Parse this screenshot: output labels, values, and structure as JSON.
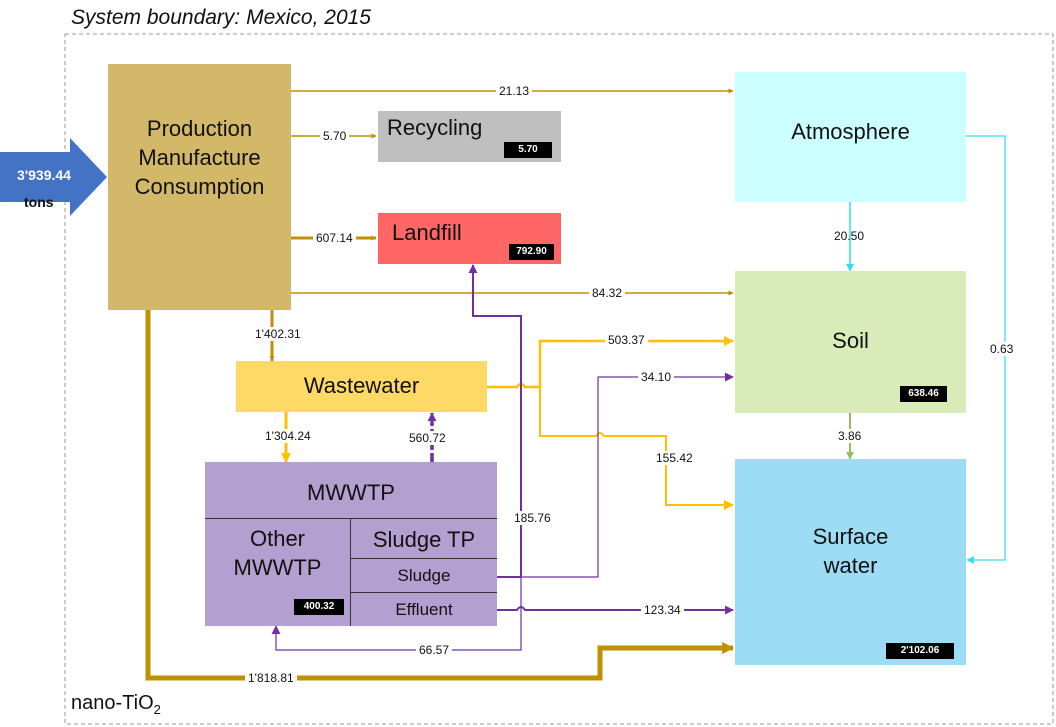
{
  "title": "System boundary: Mexico, 2015",
  "material": {
    "base": "nano-TiO",
    "sub": "2"
  },
  "input": {
    "value": "3'939.44",
    "unit": "tons"
  },
  "compartments": {
    "production": {
      "lines": [
        "Production",
        "Manufacture",
        "Consumption"
      ]
    },
    "recycling": {
      "label": "Recycling",
      "stock": "5.70"
    },
    "landfill": {
      "label": "Landfill",
      "stock": "792.90"
    },
    "wastewater": {
      "label": "Wastewater"
    },
    "mwwtp": {
      "label": "MWWTP",
      "other_lines": [
        "Other",
        "MWWTP"
      ],
      "other_stock": "400.32",
      "sludge_tp": "Sludge TP",
      "sludge": "Sludge",
      "effluent": "Effluent"
    },
    "atmosphere": {
      "label": "Atmosphere"
    },
    "soil": {
      "label": "Soil",
      "stock": "638.46"
    },
    "surface_water": {
      "lines": [
        "Surface",
        "water"
      ],
      "stock": "2'102.06"
    }
  },
  "flows": {
    "prod_atmosphere": "21.13",
    "prod_recycling": "5.70",
    "prod_landfill": "607.14",
    "prod_soil": "84.32",
    "prod_wastewater": "1'402.31",
    "prod_surface_water": "1'818.81",
    "atmosphere_soil": "20.50",
    "atmosphere_surface_water": "0.63",
    "soil_surface_water": "3.86",
    "wastewater_soil": "503.37",
    "wastewater_surface_water": "155.42",
    "wastewater_mwwtp": "1'304.24",
    "mwwtp_wastewater": "560.72",
    "sludge_landfill": "185.76",
    "sludge_soil": "34.10",
    "effluent_surface_water": "123.34",
    "sludge_other_mwwtp": "66.57"
  },
  "colors": {
    "production": "#d4b86a",
    "recycling": "#bfbfbf",
    "landfill": "#ff6666",
    "wastewater": "#ffd966",
    "mwwtp": "#b4a0d0",
    "atmosphere": "#ccffff",
    "soil": "#d9ebb8",
    "surface_water": "#9ddcf5",
    "flow_production": "#bf9000",
    "flow_wastewater": "#ffc000",
    "flow_mwwtp": "#7030a0",
    "flow_atmosphere": "#33ddee",
    "flow_soil": "#92c060",
    "input_arrow": "#4472c4"
  }
}
